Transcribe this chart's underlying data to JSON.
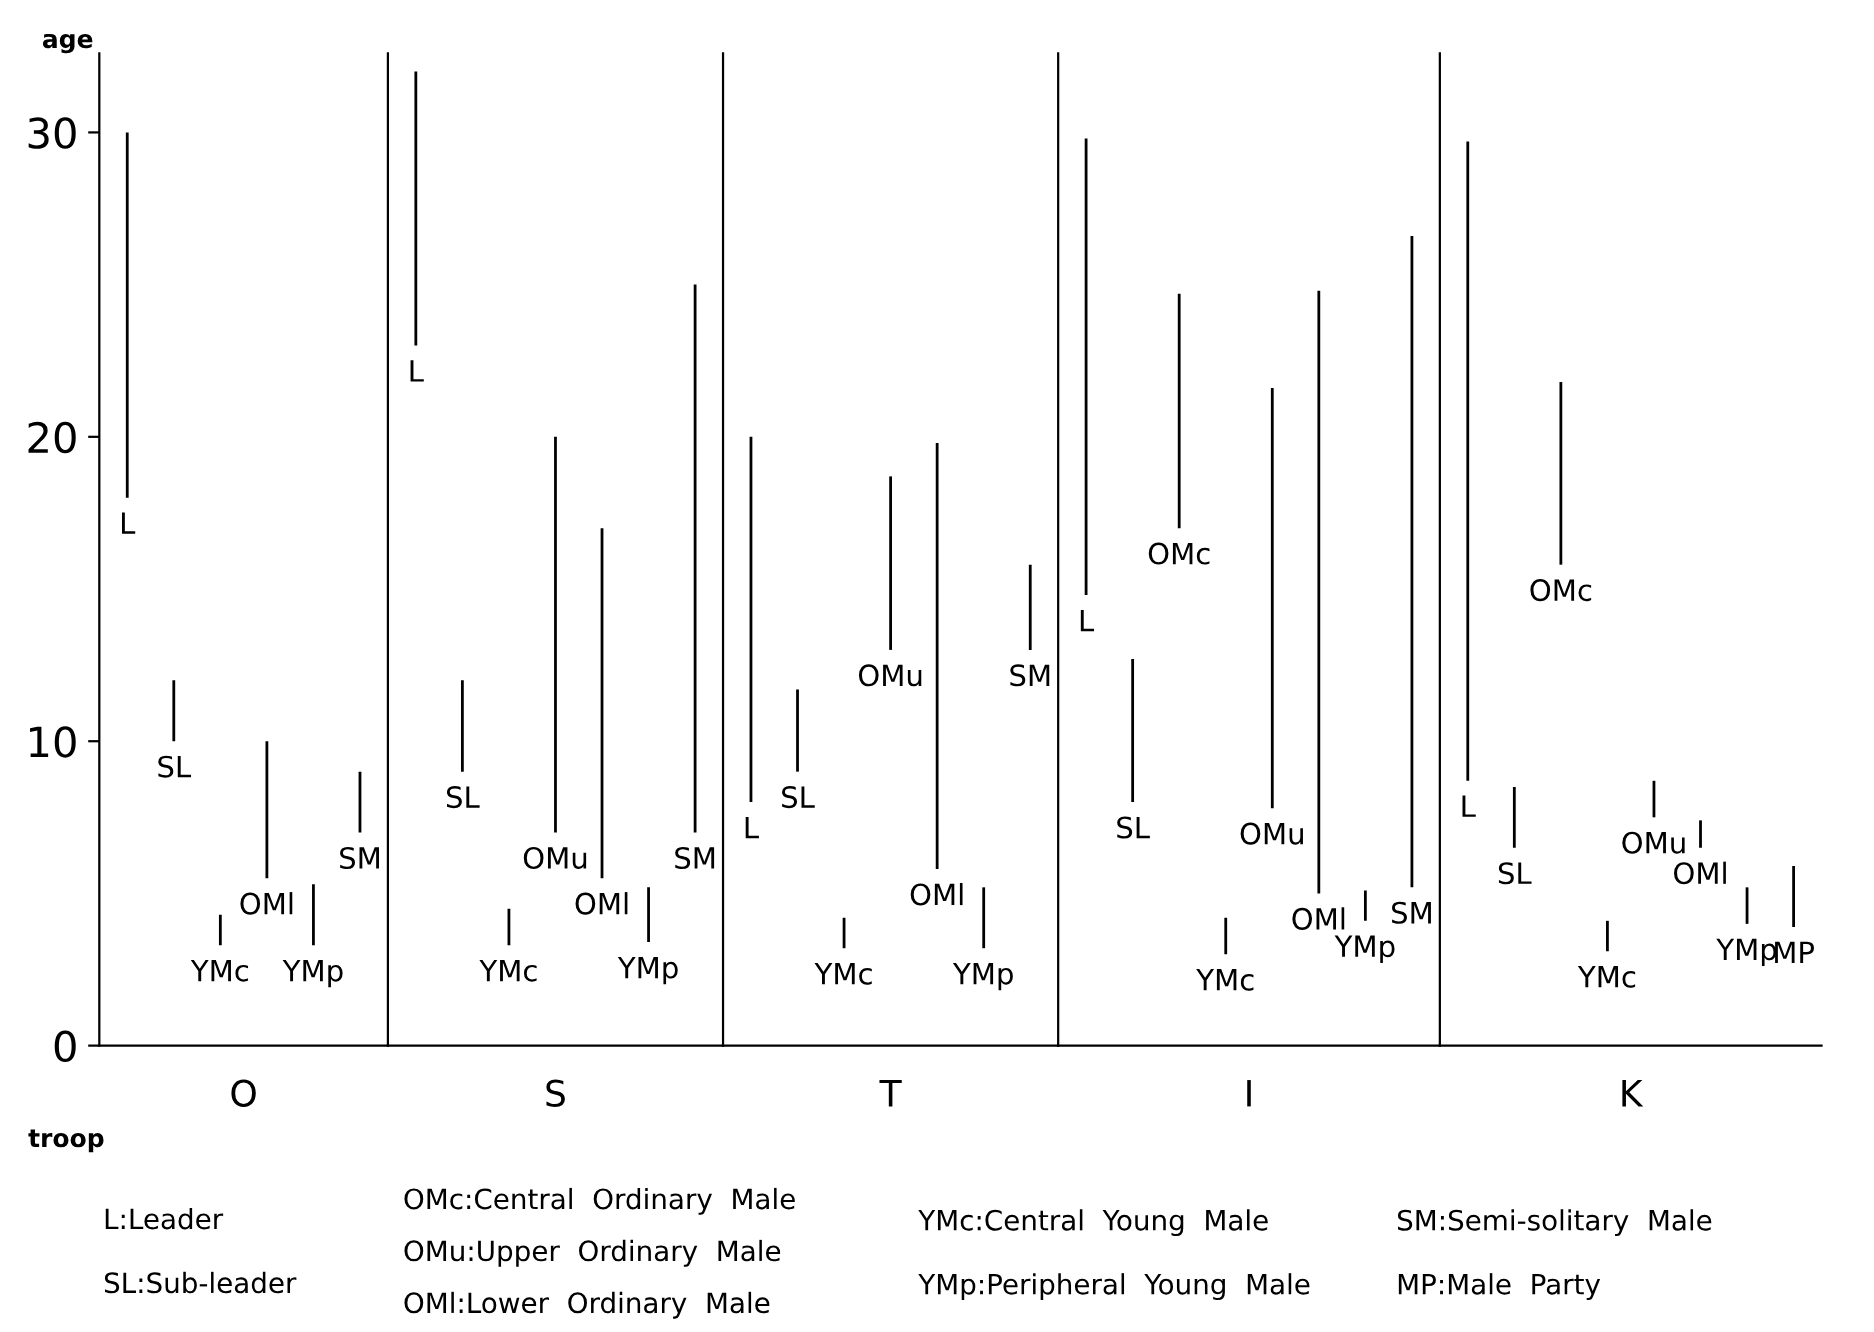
{
  "chart_data": [
    {
      "type": "bar",
      "xlabel": "O",
      "ylabel": "age",
      "color": "#000000",
      "ylim": [
        0,
        32.6
      ],
      "yticks": [
        0,
        10,
        20,
        30
      ],
      "grid": false,
      "legend": false,
      "categories": [
        "L",
        "SL",
        "YMc",
        "OMl",
        "YMp",
        "SM"
      ],
      "base": [
        18,
        10,
        3.3,
        5.5,
        3.3,
        7
      ],
      "values": [
        12,
        2,
        1,
        4.5,
        2,
        2
      ],
      "annotations": [
        "troop",
        "L:Leader",
        "SL:Sub-leader",
        "OMc:Central  Ordinary  Male",
        "OMu:Upper  Ordinary  Male",
        "OMl:Lower  Ordinary  Male",
        "YMc:Central  Young  Male",
        "YMp:Peripheral  Young  Male",
        "SM:Semi-solitary  Male",
        "MP:Male  Party"
      ]
    },
    {
      "type": "bar",
      "xlabel": "S",
      "color": "#000000",
      "ylim": [
        0,
        32.6
      ],
      "yticks": [
        0,
        10,
        20,
        30
      ],
      "grid": false,
      "legend": false,
      "tick_labels": "x",
      "categories": [
        "L",
        "SL",
        "YMc",
        "OMu",
        "OMl",
        "YMp",
        "SM"
      ],
      "base": [
        23,
        9,
        3.3,
        7,
        5.5,
        3.4,
        7
      ],
      "values": [
        9,
        3,
        1.2,
        13,
        11.5,
        1.8,
        18
      ]
    },
    {
      "type": "bar",
      "xlabel": "T",
      "color": "#000000",
      "ylim": [
        0,
        32.6
      ],
      "yticks": [
        0,
        10,
        20,
        30
      ],
      "grid": false,
      "legend": false,
      "tick_labels": "x",
      "categories": [
        "L",
        "SL",
        "YMc",
        "OMu",
        "OMl",
        "YMp",
        "SM"
      ],
      "base": [
        8,
        9,
        3.2,
        13,
        5.8,
        3.2,
        13
      ],
      "values": [
        12,
        2.7,
        1,
        5.7,
        14,
        2,
        2.8
      ]
    },
    {
      "type": "bar",
      "xlabel": "I",
      "color": "#000000",
      "ylim": [
        0,
        32.6
      ],
      "yticks": [
        0,
        10,
        20,
        30
      ],
      "grid": false,
      "legend": false,
      "tick_labels": "x",
      "categories": [
        "L",
        "SL",
        "OMc",
        "YMc",
        "OMu",
        "OMl",
        "YMp",
        "SM"
      ],
      "base": [
        14.8,
        8,
        17,
        3,
        7.8,
        5,
        4.1,
        5.2
      ],
      "values": [
        15,
        4.7,
        7.7,
        1.2,
        13.8,
        19.8,
        1,
        21.4
      ]
    },
    {
      "type": "bar",
      "xlabel": "K",
      "color": "#000000",
      "ylim": [
        0,
        32.6
      ],
      "yticks": [
        0,
        10,
        20,
        30
      ],
      "grid": false,
      "legend": false,
      "tick_labels": "x",
      "categories": [
        "L",
        "SL",
        "OMc",
        "YMc",
        "OMu",
        "OMl",
        "YMp",
        "MP"
      ],
      "base": [
        8.7,
        6.5,
        15.8,
        3.1,
        7.5,
        6.5,
        4,
        3.9
      ],
      "values": [
        21,
        2,
        6,
        1,
        1.2,
        0.9,
        1.2,
        2
      ]
    }
  ]
}
